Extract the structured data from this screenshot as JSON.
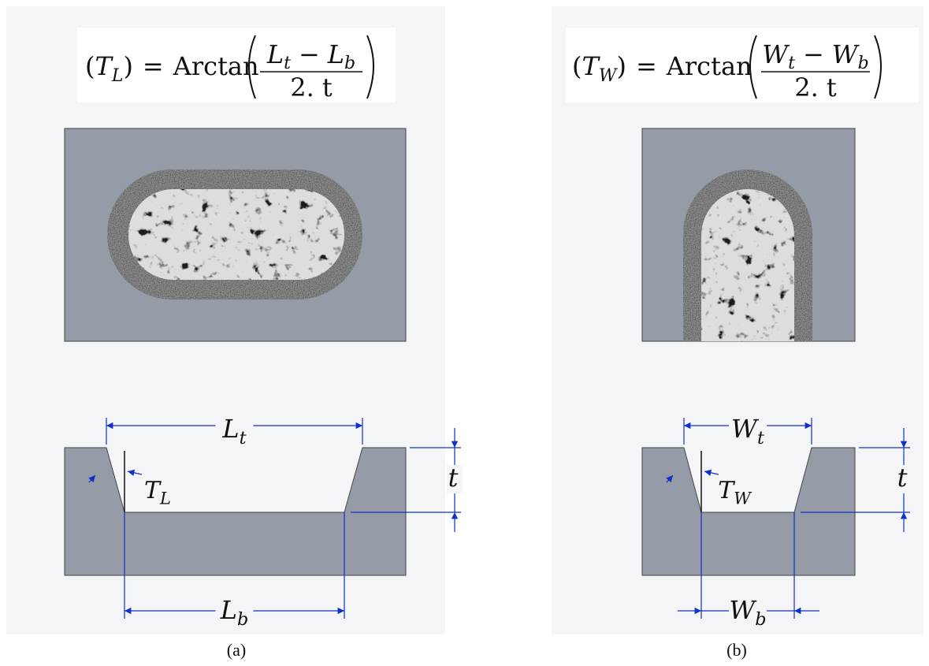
{
  "panels": [
    {
      "formula": {
        "open": "(",
        "lhs": "T",
        "lhs_sub": "L",
        "close": ")",
        "eq": "=",
        "func": "Arctan",
        "num1": "L",
        "num1_sub": "t",
        "minus": "−",
        "num2": "L",
        "num2_sub": "b",
        "den": "2. t"
      },
      "top_label": {
        "main": "L",
        "sub": "t"
      },
      "bottom_label": {
        "main": "L",
        "sub": "b"
      },
      "depth_label": "t",
      "angle_label": {
        "main": "T",
        "sub": "L"
      },
      "caption": "(a)"
    },
    {
      "formula": {
        "open": "(",
        "lhs": "T",
        "lhs_sub": "W",
        "close": ")",
        "eq": "=",
        "func": "Arctan",
        "num1": "W",
        "num1_sub": "t",
        "minus": "−",
        "num2": "W",
        "num2_sub": "b",
        "den": "2. t"
      },
      "top_label": {
        "main": "W",
        "sub": "t"
      },
      "bottom_label": {
        "main": "W",
        "sub": "b"
      },
      "depth_label": "t",
      "angle_label": {
        "main": "T",
        "sub": "W"
      },
      "caption": "(b)"
    }
  ]
}
